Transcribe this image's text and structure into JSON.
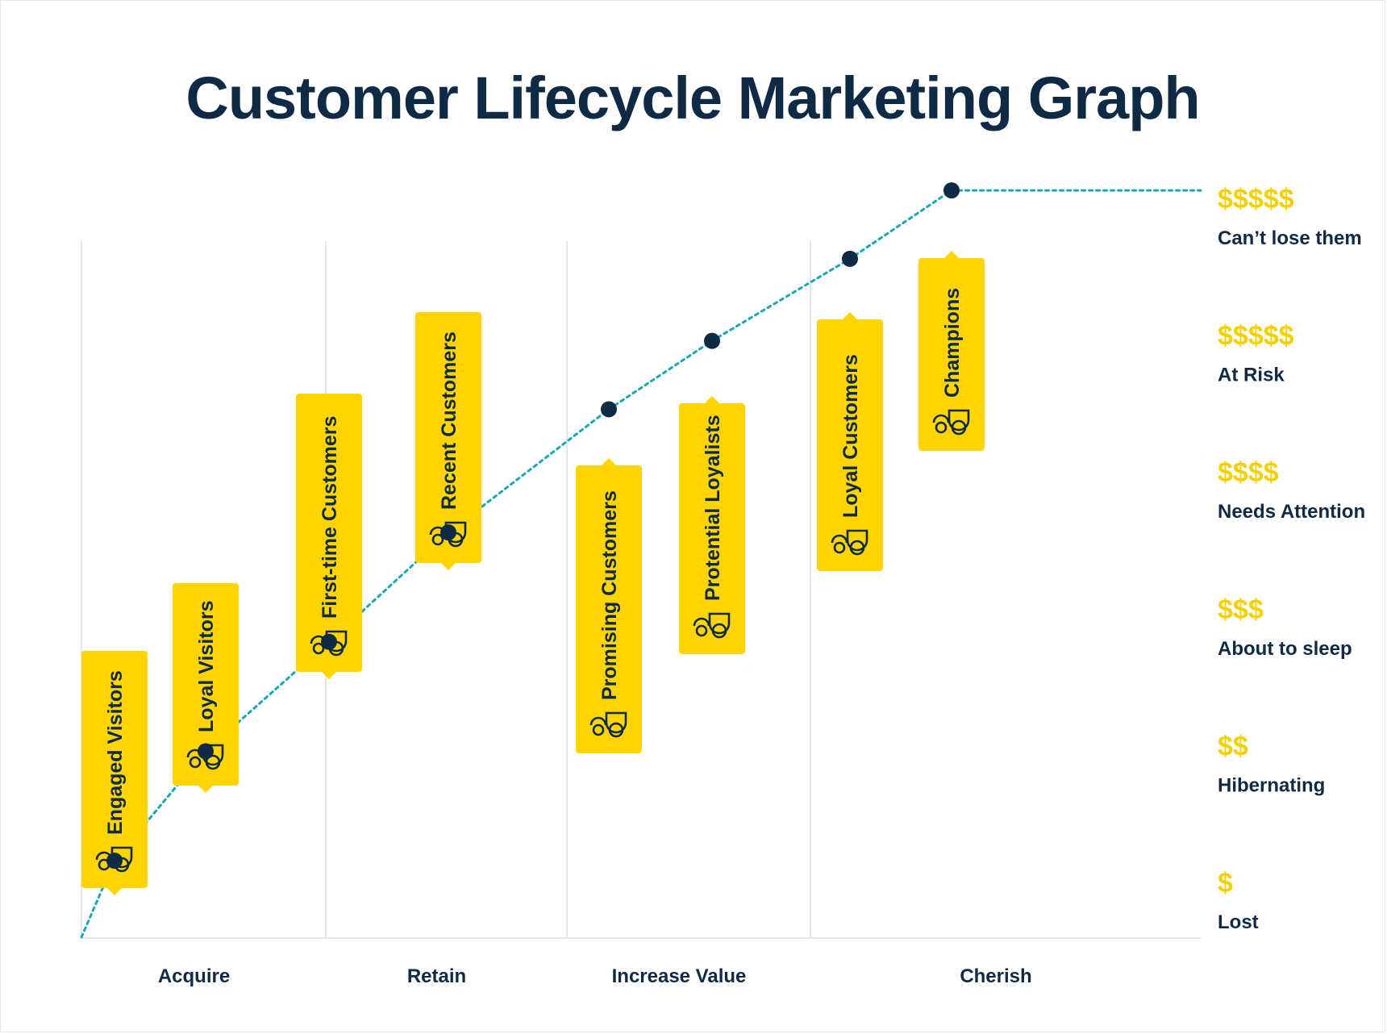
{
  "title": "Customer Lifecycle Marketing Graph",
  "chart_data": {
    "type": "line",
    "title": "Customer Lifecycle Marketing Graph",
    "stages": [
      "Acquire",
      "Retain",
      "Increase Value",
      "Cherish"
    ],
    "levels": [
      {
        "dollars": "$",
        "name": "Lost"
      },
      {
        "dollars": "$$",
        "name": "Hibernating"
      },
      {
        "dollars": "$$$",
        "name": "About to sleep"
      },
      {
        "dollars": "$$$$",
        "name": "Needs Attention"
      },
      {
        "dollars": "$$$$$",
        "name": "At Risk"
      },
      {
        "dollars": "$$$$$",
        "name": "Can’t lose them"
      }
    ],
    "segments": [
      {
        "name": "Engaged Visitors",
        "stage": "Acquire",
        "value": 0.3
      },
      {
        "name": "Loyal Visitors",
        "stage": "Acquire",
        "value": 1.1
      },
      {
        "name": "First-time Customers",
        "stage": "Retain",
        "value": 1.9
      },
      {
        "name": "Recent Customers",
        "stage": "Retain",
        "value": 2.7
      },
      {
        "name": "Promising Customers",
        "stage": "Increase Value",
        "value": 3.6
      },
      {
        "name": "Protential Loyalists",
        "stage": "Increase Value",
        "value": 4.1
      },
      {
        "name": "Loyal Customers",
        "stage": "Cherish",
        "value": 4.7
      },
      {
        "name": "Champions",
        "stage": "Cherish",
        "value": 5.2
      }
    ],
    "colors": {
      "card": "#ffd400",
      "line": "#1aa6b7",
      "point": "#0f2a44",
      "text": "#0f2a44",
      "dollar": "#f5d000",
      "grid": "#e3e6ea"
    },
    "icon": "customer-icon"
  }
}
